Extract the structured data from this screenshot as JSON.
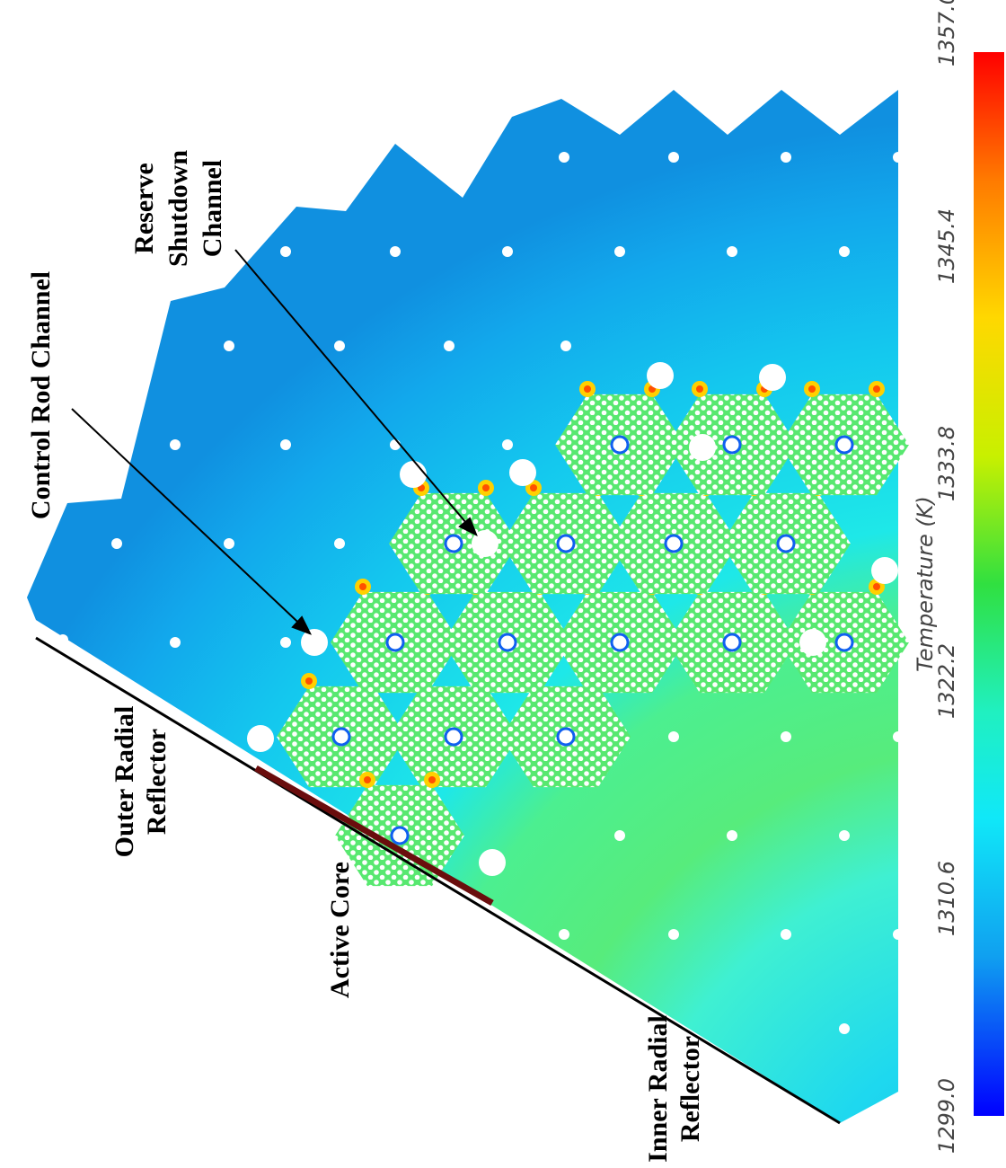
{
  "annotations": {
    "control_rod": "Control Rod Channel",
    "reserve_shutdown": [
      "Reserve",
      "Shutdown",
      "Channel"
    ],
    "outer_reflector": [
      "Outer Radial",
      "Reflector"
    ],
    "active_core": "Active Core",
    "inner_reflector": [
      "Inner Radial",
      "Reflector"
    ]
  },
  "colorbar": {
    "title": "Temperature (K)",
    "ticks": [
      "1357.0",
      "1345.4",
      "1333.8",
      "1322.2",
      "1310.6",
      "1299.0"
    ]
  }
}
